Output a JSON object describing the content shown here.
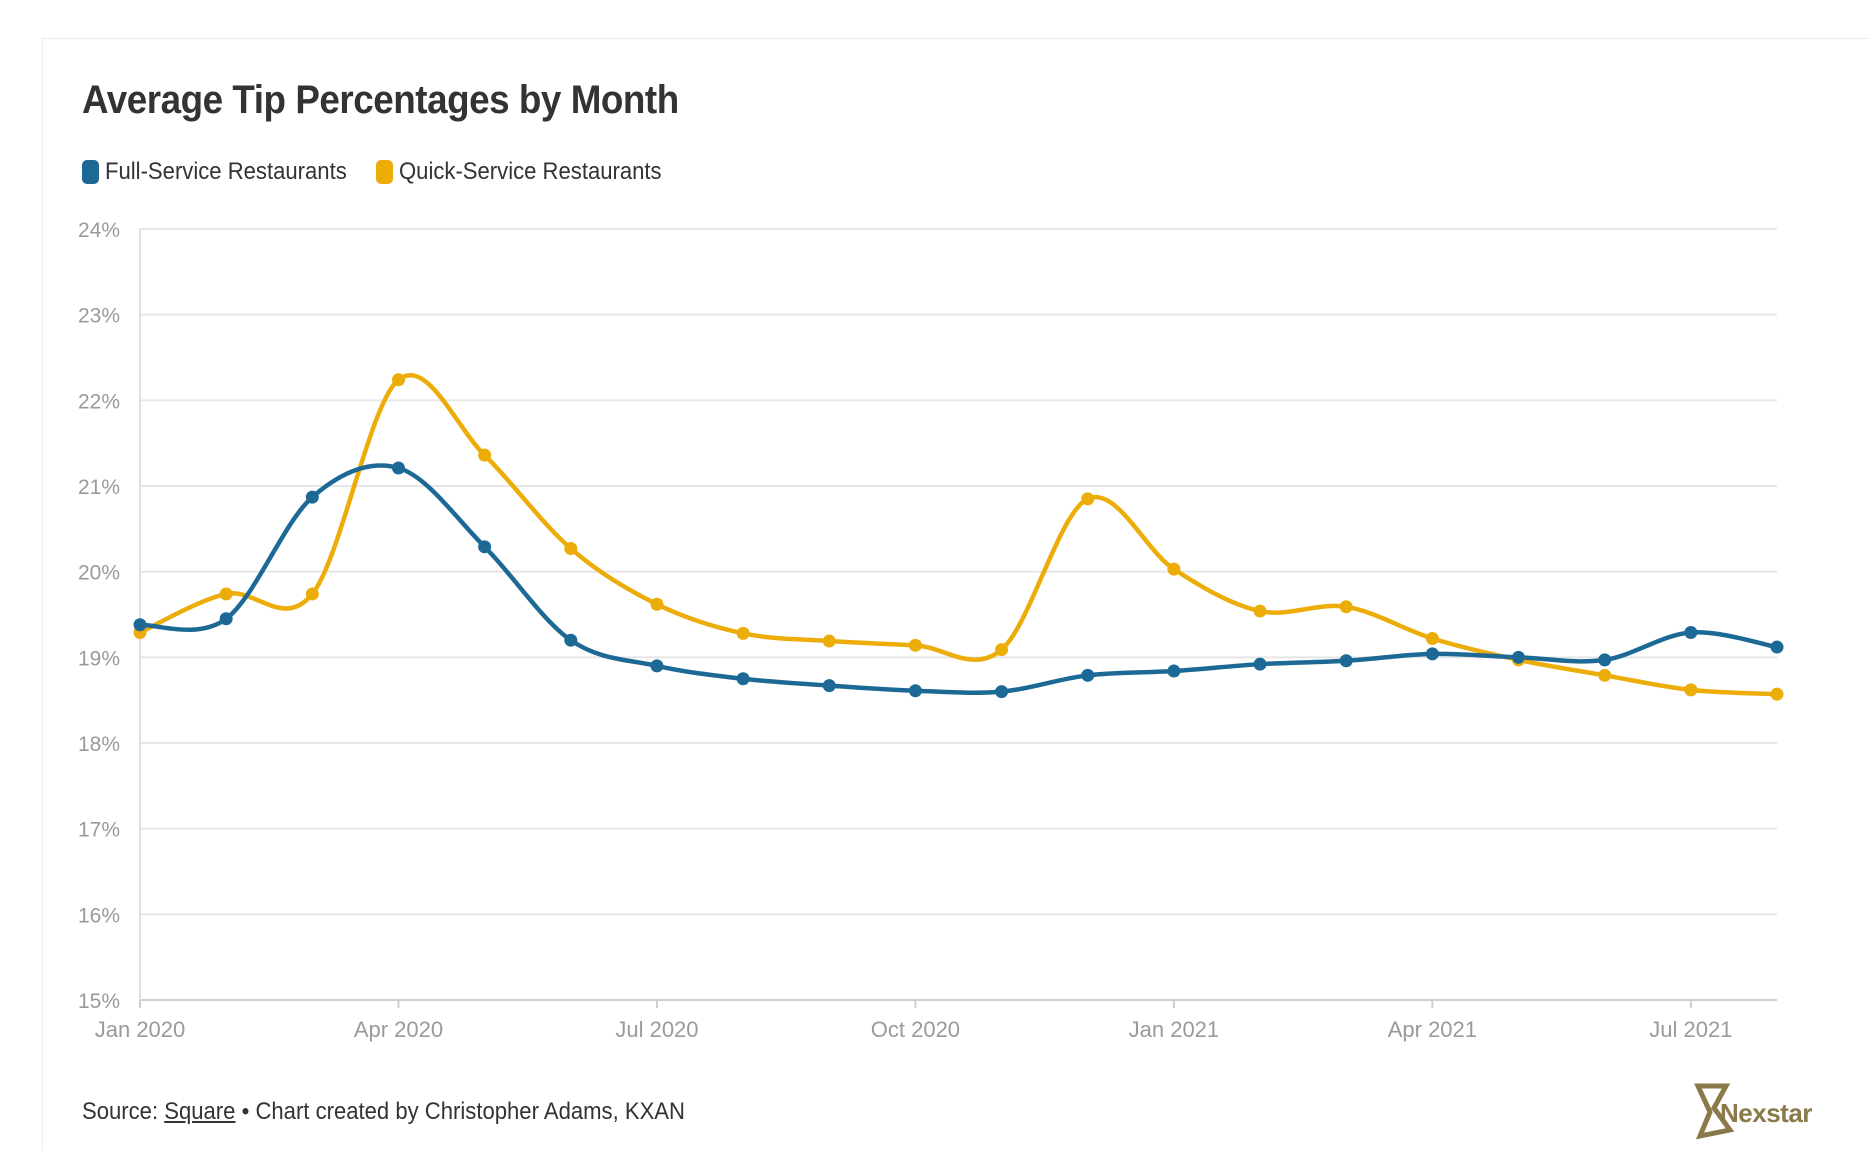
{
  "title": "Average Tip Percentages by Month",
  "legend": [
    {
      "label": "Full-Service Restaurants",
      "color": "#1d6996"
    },
    {
      "label": "Quick-Service Restaurants",
      "color": "#edad08"
    }
  ],
  "footer": {
    "source_prefix": "Source: ",
    "source_link": "Square",
    "credit": " • Chart created by Christopher Adams, KXAN"
  },
  "logo": {
    "text": "Nexstar",
    "color": "#8a7a4a"
  },
  "chart_data": {
    "type": "line",
    "title": "Average Tip Percentages by Month",
    "xlabel": "",
    "ylabel": "",
    "x": [
      "2020-01",
      "2020-02",
      "2020-03",
      "2020-04",
      "2020-05",
      "2020-06",
      "2020-07",
      "2020-08",
      "2020-09",
      "2020-10",
      "2020-11",
      "2020-12",
      "2021-01",
      "2021-02",
      "2021-03",
      "2021-04",
      "2021-05",
      "2021-06",
      "2021-07",
      "2021-08"
    ],
    "x_tick_labels": [
      "Jan 2020",
      "Apr 2020",
      "Jul 2020",
      "Oct 2020",
      "Jan 2021",
      "Apr 2021",
      "Jul 2021"
    ],
    "x_tick_positions": [
      "2020-01",
      "2020-04",
      "2020-07",
      "2020-10",
      "2021-01",
      "2021-04",
      "2021-07"
    ],
    "y_ticks": [
      "15%",
      "16%",
      "17%",
      "18%",
      "19%",
      "20%",
      "21%",
      "22%",
      "23%",
      "24%"
    ],
    "ylim": [
      15,
      24
    ],
    "grid": true,
    "legend_position": "top-left",
    "series": [
      {
        "name": "Full-Service Restaurants",
        "color": "#1d6996",
        "values": [
          19.38,
          19.45,
          20.87,
          21.21,
          20.29,
          19.2,
          18.9,
          18.75,
          18.67,
          18.61,
          18.6,
          18.79,
          18.84,
          18.92,
          18.96,
          19.04,
          19.0,
          18.97,
          19.29,
          19.12
        ]
      },
      {
        "name": "Quick-Service Restaurants",
        "color": "#edad08",
        "values": [
          19.29,
          19.74,
          19.74,
          22.24,
          21.36,
          20.27,
          19.62,
          19.28,
          19.19,
          19.14,
          19.09,
          20.85,
          20.03,
          19.54,
          19.59,
          19.22,
          18.97,
          18.79,
          18.62,
          18.57
        ]
      }
    ]
  }
}
